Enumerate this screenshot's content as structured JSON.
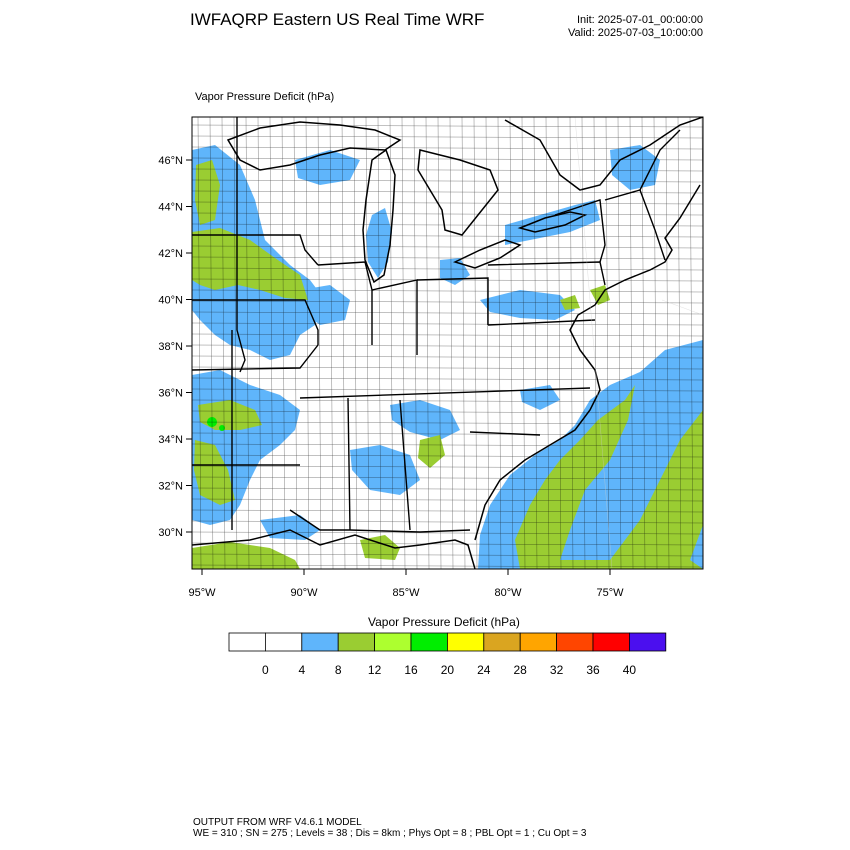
{
  "header": {
    "title": "IWFAQRP Eastern US Real Time WRF",
    "init": "Init: 2025-07-01_00:00:00",
    "valid": "Valid: 2025-07-03_10:00:00"
  },
  "field": {
    "label": "Vapor Pressure Deficit   (hPa)"
  },
  "map": {
    "lat_labels": [
      "46°N",
      "44°N",
      "42°N",
      "40°N",
      "38°N",
      "36°N",
      "34°N",
      "32°N",
      "30°N"
    ],
    "lon_labels": [
      "95°W",
      "90°W",
      "85°W",
      "80°W",
      "75°W"
    ],
    "land_color": "#ffffff",
    "water_color": "#ffffff"
  },
  "colorbar": {
    "title": "Vapor Pressure Deficit  (hPa)",
    "colors": [
      "#ffffff",
      "#ffffff",
      "#5fb5fb",
      "#9acd32",
      "#adff2f",
      "#00ee00",
      "#ffff00",
      "#daa520",
      "#ffa500",
      "#ff4500",
      "#ff0000",
      "#4b0fef"
    ],
    "ticks": [
      "0",
      "4",
      "8",
      "12",
      "16",
      "20",
      "24",
      "28",
      "32",
      "36",
      "40"
    ]
  },
  "footer": {
    "line1": "OUTPUT FROM WRF V4.6.1 MODEL",
    "line2": "WE = 310 ; SN = 275 ; Levels = 38 ; Dis = 8km ; Phys Opt = 8 ; PBL Opt = 1 ; Cu Opt = 3"
  }
}
